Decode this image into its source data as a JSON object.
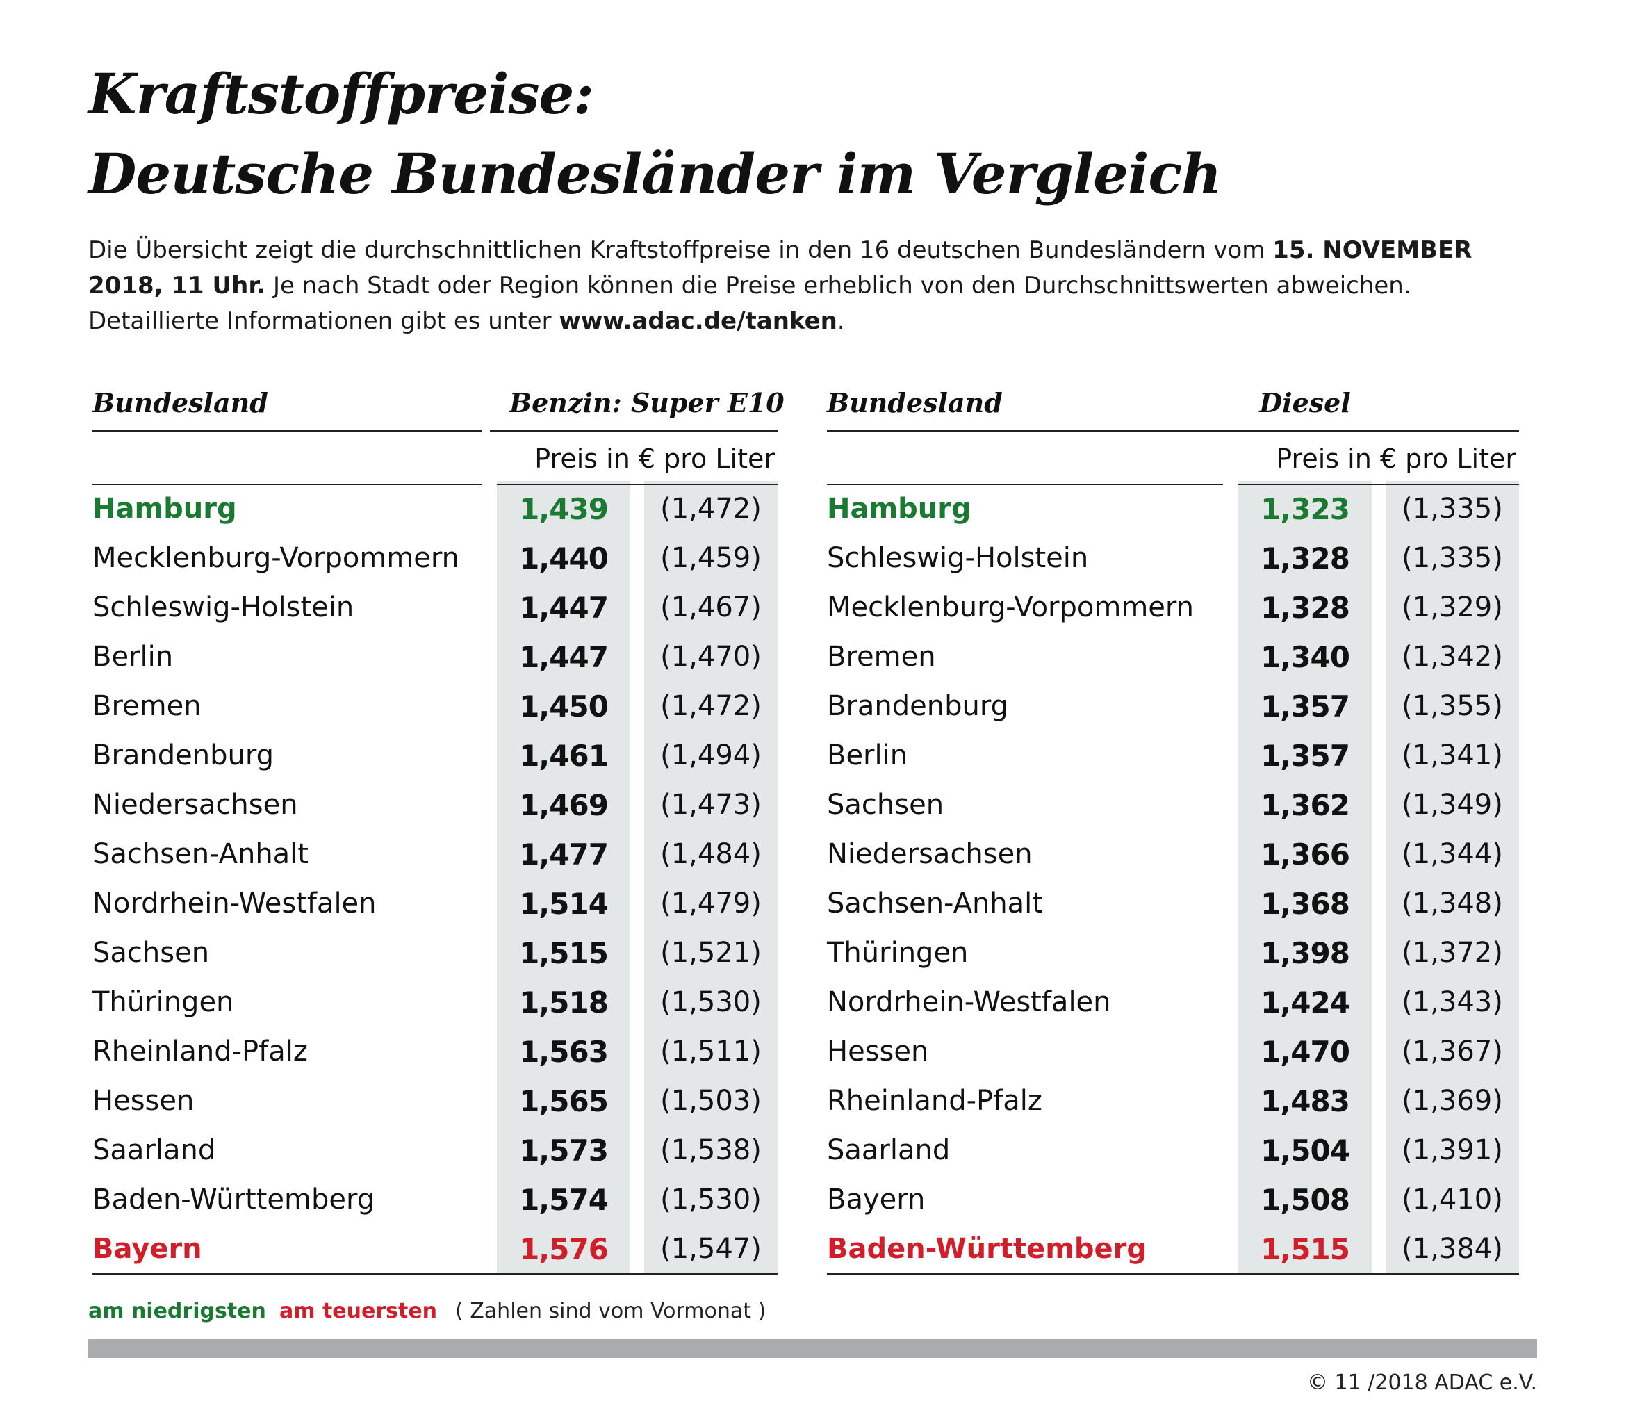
{
  "title_line1": "Kraftstoffpreise:",
  "title_line2": "Deutsche Bundesländer im Vergleich",
  "intro": {
    "part1": "Die Übersicht zeigt die durchschnittlichen Kraftstoffpreise in den 16 deutschen Bundesländern vom ",
    "bold1": "15. NOVEMBER 2018, 11 Uhr.",
    "part2": " Je nach Stadt oder Region können die Preise erheblich von den Durchschnittswerten abweichen. Detaillierte Informationen gibt es unter ",
    "bold2": "www.adac.de/tanken",
    "part3": "."
  },
  "benzin": {
    "col_header_state": "Bundesland",
    "col_header_fuel": "Benzin:  Super E10",
    "subheader": "Preis in € pro Liter",
    "rows": [
      {
        "state": "Hamburg",
        "price": "1,439",
        "prev": "(1,472)",
        "mark": "low"
      },
      {
        "state": "Mecklenburg-Vorpommern",
        "price": "1,440",
        "prev": "(1,459)",
        "mark": ""
      },
      {
        "state": "Schleswig-Holstein",
        "price": "1,447",
        "prev": "(1,467)",
        "mark": ""
      },
      {
        "state": "Berlin",
        "price": "1,447",
        "prev": "(1,470)",
        "mark": ""
      },
      {
        "state": "Bremen",
        "price": "1,450",
        "prev": "(1,472)",
        "mark": ""
      },
      {
        "state": "Brandenburg",
        "price": "1,461",
        "prev": "(1,494)",
        "mark": ""
      },
      {
        "state": "Niedersachsen",
        "price": "1,469",
        "prev": "(1,473)",
        "mark": ""
      },
      {
        "state": "Sachsen-Anhalt",
        "price": "1,477",
        "prev": "(1,484)",
        "mark": ""
      },
      {
        "state": "Nordrhein-Westfalen",
        "price": "1,514",
        "prev": "(1,479)",
        "mark": ""
      },
      {
        "state": "Sachsen",
        "price": "1,515",
        "prev": "(1,521)",
        "mark": ""
      },
      {
        "state": "Thüringen",
        "price": "1,518",
        "prev": "(1,530)",
        "mark": ""
      },
      {
        "state": "Rheinland-Pfalz",
        "price": "1,563",
        "prev": "(1,511)",
        "mark": ""
      },
      {
        "state": "Hessen",
        "price": "1,565",
        "prev": "(1,503)",
        "mark": ""
      },
      {
        "state": "Saarland",
        "price": "1,573",
        "prev": "(1,538)",
        "mark": ""
      },
      {
        "state": "Baden-Württemberg",
        "price": "1,574",
        "prev": "(1,530)",
        "mark": ""
      },
      {
        "state": "Bayern",
        "price": "1,576",
        "prev": "(1,547)",
        "mark": "high"
      }
    ]
  },
  "diesel": {
    "col_header_state": "Bundesland",
    "col_header_fuel": "Diesel",
    "subheader": "Preis in € pro Liter",
    "rows": [
      {
        "state": "Hamburg",
        "price": "1,323",
        "prev": "(1,335)",
        "mark": "low"
      },
      {
        "state": "Schleswig-Holstein",
        "price": "1,328",
        "prev": "(1,335)",
        "mark": ""
      },
      {
        "state": "Mecklenburg-Vorpommern",
        "price": "1,328",
        "prev": "(1,329)",
        "mark": ""
      },
      {
        "state": "Bremen",
        "price": "1,340",
        "prev": "(1,342)",
        "mark": ""
      },
      {
        "state": "Brandenburg",
        "price": "1,357",
        "prev": "(1,355)",
        "mark": ""
      },
      {
        "state": "Berlin",
        "price": "1,357",
        "prev": "(1,341)",
        "mark": ""
      },
      {
        "state": "Sachsen",
        "price": "1,362",
        "prev": "(1,349)",
        "mark": ""
      },
      {
        "state": "Niedersachsen",
        "price": "1,366",
        "prev": "(1,344)",
        "mark": ""
      },
      {
        "state": "Sachsen-Anhalt",
        "price": "1,368",
        "prev": "(1,348)",
        "mark": ""
      },
      {
        "state": "Thüringen",
        "price": "1,398",
        "prev": "(1,372)",
        "mark": ""
      },
      {
        "state": "Nordrhein-Westfalen",
        "price": "1,424",
        "prev": "(1,343)",
        "mark": ""
      },
      {
        "state": "Hessen",
        "price": "1,470",
        "prev": "(1,367)",
        "mark": ""
      },
      {
        "state": "Rheinland-Pfalz",
        "price": "1,483",
        "prev": "(1,369)",
        "mark": ""
      },
      {
        "state": "Saarland",
        "price": "1,504",
        "prev": "(1,391)",
        "mark": ""
      },
      {
        "state": "Bayern",
        "price": "1,508",
        "prev": "(1,410)",
        "mark": ""
      },
      {
        "state": "Baden-Württemberg",
        "price": "1,515",
        "prev": "(1,384)",
        "mark": "high"
      }
    ]
  },
  "legend": {
    "lowest": "am niedrigsten",
    "highest": "am teuersten",
    "note": "( Zahlen sind vom Vormonat )"
  },
  "copyright": "© 11 /2018 ADAC e.V.",
  "colors": {
    "lowest": "#1b7a32",
    "highest": "#d01e2b",
    "band": "#e3e7e8",
    "footer_bar": "#a9acad"
  }
}
